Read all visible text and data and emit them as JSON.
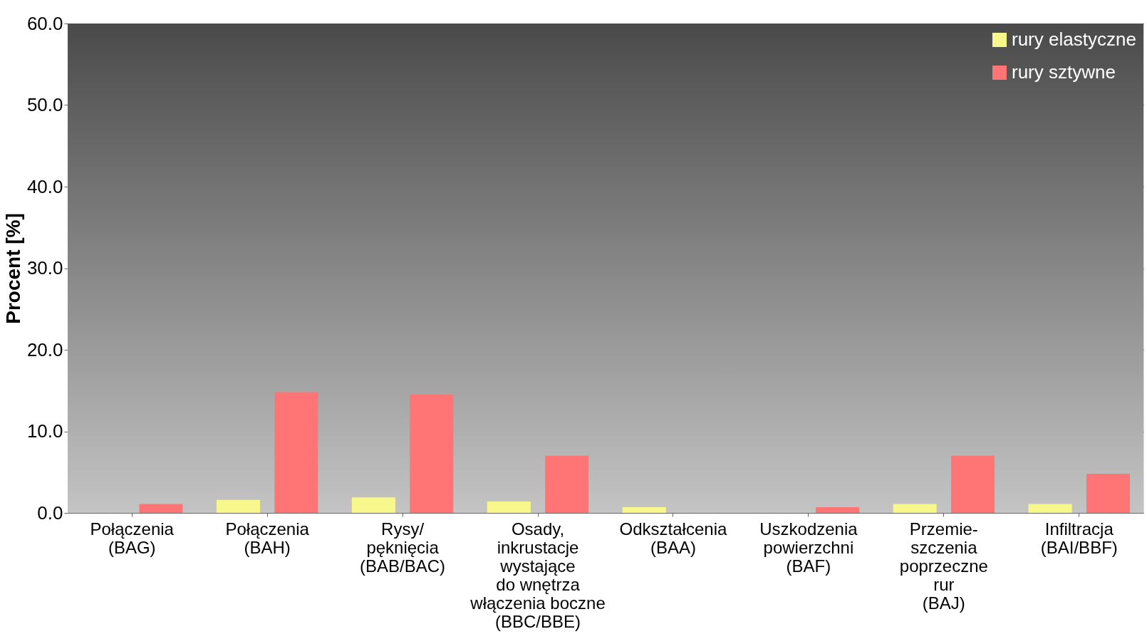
{
  "chart_data": {
    "type": "bar",
    "ylabel": "Procent [%]",
    "categories": [
      "Połączenia\n(BAG)",
      "Połączenia\n(BAH)",
      "Rysy/\npęknięcia\n(BAB/BAC)",
      "Osady,\ninkrustacje\nwystające\ndo wnętrza\nwłączenia boczne\n(BBC/BBE)",
      "Odkształcenia\n(BAA)",
      "Uszkodzenia\npowierzchni\n(BAF)",
      "Przemie-\nszczenia\npoprzeczne\nrur\n(BAJ)",
      "Infiltracja\n(BAI/BBF)"
    ],
    "series": [
      {
        "name": "rury elastyczne",
        "color": "#f7f78c",
        "values": [
          null,
          1.6,
          1.9,
          1.4,
          0.7,
          null,
          1.1,
          1.1
        ]
      },
      {
        "name": "rury sztywne",
        "color": "#ff7575",
        "values": [
          1.1,
          14.8,
          14.5,
          7.0,
          null,
          0.7,
          7.0,
          4.8
        ]
      }
    ],
    "ylim": [
      0,
      60
    ],
    "yticks": [
      {
        "value": 0,
        "label": "0.0"
      },
      {
        "value": 10,
        "label": "10.0"
      },
      {
        "value": 20,
        "label": "20.0"
      },
      {
        "value": 30,
        "label": "30.0"
      },
      {
        "value": 40,
        "label": "40.0"
      },
      {
        "value": 50,
        "label": "50.0"
      },
      {
        "value": 60,
        "label": "60.0"
      }
    ],
    "grid": "y",
    "legend": "top right"
  }
}
